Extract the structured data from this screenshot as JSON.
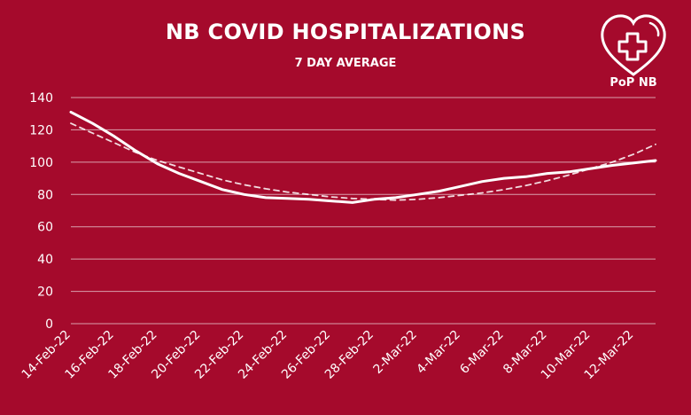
{
  "header": {
    "title": "NB COVID HOSPITALIZATIONS",
    "subtitle": "7 DAY AVERAGE"
  },
  "logo": {
    "label": "PoP NB",
    "icon": "heart-medical-cross-icon"
  },
  "colors": {
    "background": "#a50a2c",
    "foreground": "#ffffff",
    "grid": "#d9a0ad"
  },
  "chart_data": {
    "type": "line",
    "title": "NB COVID HOSPITALIZATIONS",
    "subtitle": "7 DAY AVERAGE",
    "x": [
      "14-Feb-22",
      "15-Feb-22",
      "16-Feb-22",
      "17-Feb-22",
      "18-Feb-22",
      "19-Feb-22",
      "20-Feb-22",
      "21-Feb-22",
      "22-Feb-22",
      "23-Feb-22",
      "24-Feb-22",
      "25-Feb-22",
      "26-Feb-22",
      "27-Feb-22",
      "28-Feb-22",
      "1-Mar-22",
      "2-Mar-22",
      "3-Mar-22",
      "4-Mar-22",
      "5-Mar-22",
      "6-Mar-22",
      "7-Mar-22",
      "8-Mar-22",
      "9-Mar-22",
      "10-Mar-22",
      "11-Mar-22",
      "12-Mar-22",
      "13-Mar-22"
    ],
    "x_tick_labels": [
      "14-Feb-22",
      "16-Feb-22",
      "18-Feb-22",
      "20-Feb-22",
      "22-Feb-22",
      "24-Feb-22",
      "26-Feb-22",
      "28-Feb-22",
      "2-Mar-22",
      "4-Mar-22",
      "6-Mar-22",
      "8-Mar-22",
      "10-Mar-22",
      "12-Mar-22"
    ],
    "y_ticks": [
      0,
      20,
      40,
      60,
      80,
      100,
      120,
      140
    ],
    "ylim": [
      0,
      140
    ],
    "grid": true,
    "series": [
      {
        "style": "solid",
        "values": [
          131,
          124,
          116,
          107,
          99,
          93,
          88,
          83,
          80,
          78,
          77.5,
          77,
          76,
          75,
          77,
          78,
          80,
          82,
          85,
          88,
          90,
          91,
          93,
          94,
          96,
          98,
          99.5,
          101
        ]
      },
      {
        "style": "dashed",
        "values": [
          124,
          118,
          112,
          106,
          101,
          97,
          93,
          89,
          86,
          83.5,
          81.5,
          80,
          78.5,
          77.5,
          77,
          76.5,
          77,
          78,
          79.5,
          81,
          83,
          85.5,
          88.5,
          92,
          96,
          100,
          105,
          111
        ]
      }
    ]
  }
}
